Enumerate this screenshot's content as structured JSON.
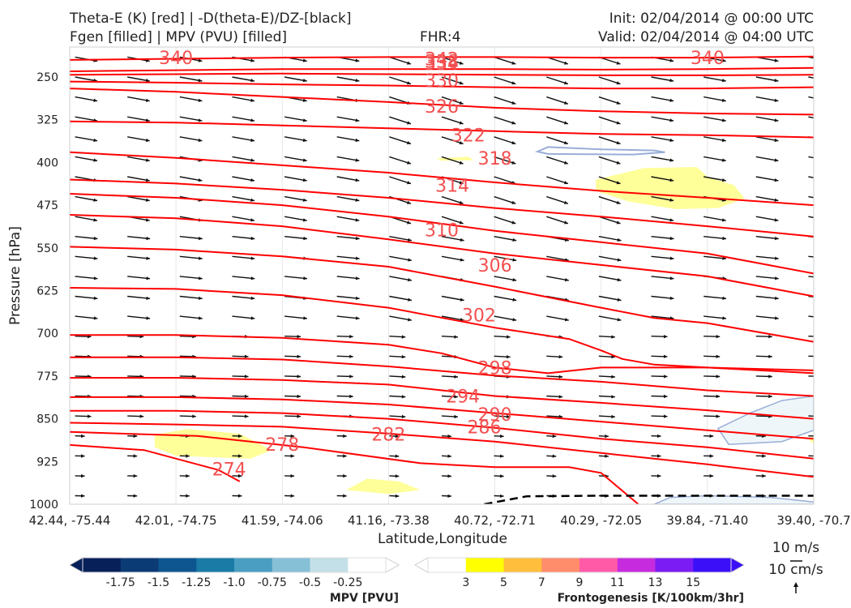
{
  "header": {
    "title_line1": "Theta-E (K) [red] | -D(theta-E)/DZ-[black]",
    "title_line2": "Fgen [filled] | MPV (PVU) [filled]",
    "fhr": "FHR:4",
    "init": "Init: 02/04/2014 @ 00:00 UTC",
    "valid": "Valid: 02/04/2014 @ 04:00 UTC"
  },
  "chart_data": {
    "type": "cross-section",
    "xlabel": "Latitude,Longitude",
    "ylabel": "Pressure [hPa]",
    "x_ticks": [
      "42.44, -75.44",
      "42.01, -74.75",
      "41.59, -74.06",
      "41.16, -73.38",
      "40.72, -72.71",
      "40.29, -72.05",
      "39.84, -71.40",
      "39.40, -70.7"
    ],
    "y_ticks": [
      "250",
      "325",
      "400",
      "475",
      "550",
      "625",
      "700",
      "775",
      "850",
      "925",
      "1000"
    ],
    "ylim": [
      1000,
      205
    ],
    "x_index_range": [
      0,
      7
    ],
    "theta_e_contours": [
      {
        "label": "274",
        "points": [
          [
            0,
            896
          ],
          [
            0.7,
            905
          ],
          [
            1.4,
            940
          ],
          [
            1.6,
            960
          ]
        ]
      },
      {
        "label": "278",
        "points": [
          [
            0,
            873
          ],
          [
            1.2,
            880
          ],
          [
            2.2,
            900
          ],
          [
            3.3,
            928
          ],
          [
            4.0,
            935
          ],
          [
            4.7,
            935
          ],
          [
            5.0,
            945
          ],
          [
            5.35,
            1000
          ]
        ]
      },
      {
        "label": "282",
        "points": [
          [
            0,
            857
          ],
          [
            1.0,
            860
          ],
          [
            2.0,
            864
          ],
          [
            3.0,
            876
          ],
          [
            4.0,
            890
          ],
          [
            5.0,
            910
          ],
          [
            6.0,
            930
          ],
          [
            7.0,
            952
          ]
        ]
      },
      {
        "label": "286",
        "points": [
          [
            0,
            836
          ],
          [
            1.0,
            836
          ],
          [
            2.0,
            840
          ],
          [
            3.0,
            850
          ],
          [
            4.0,
            866
          ],
          [
            5.0,
            885
          ],
          [
            6.0,
            900
          ],
          [
            7.0,
            920
          ]
        ]
      },
      {
        "label": "290",
        "points": [
          [
            0,
            812
          ],
          [
            1.0,
            812
          ],
          [
            2.0,
            816
          ],
          [
            3.0,
            825
          ],
          [
            4.0,
            840
          ],
          [
            5.0,
            855
          ],
          [
            6.0,
            870
          ],
          [
            7.0,
            885
          ]
        ]
      },
      {
        "label": "294",
        "points": [
          [
            0,
            778
          ],
          [
            1.0,
            778
          ],
          [
            2.0,
            782
          ],
          [
            3.0,
            790
          ],
          [
            4.0,
            810
          ],
          [
            5.0,
            822
          ],
          [
            6.0,
            835
          ],
          [
            7.0,
            850
          ]
        ]
      },
      {
        "label": "298",
        "points": [
          [
            0,
            742
          ],
          [
            1.0,
            742
          ],
          [
            2.0,
            746
          ],
          [
            3.0,
            758
          ],
          [
            4.0,
            774
          ],
          [
            5.0,
            785
          ],
          [
            6.0,
            800
          ],
          [
            7.0,
            810
          ]
        ]
      },
      {
        "label": "302",
        "points": [
          [
            0,
            703
          ],
          [
            1.0,
            703
          ],
          [
            2.0,
            708
          ],
          [
            3.0,
            720
          ],
          [
            3.5,
            735
          ],
          [
            4.0,
            760
          ],
          [
            4.5,
            770
          ],
          [
            5.0,
            760
          ],
          [
            6.0,
            760
          ],
          [
            7.0,
            765
          ]
        ]
      },
      {
        "label": "306",
        "points": [
          [
            0,
            620
          ],
          [
            1.0,
            622
          ],
          [
            2.0,
            633
          ],
          [
            3.0,
            655
          ],
          [
            4.0,
            690
          ],
          [
            4.7,
            710
          ],
          [
            5.0,
            730
          ],
          [
            5.2,
            745
          ],
          [
            5.5,
            755
          ],
          [
            6.0,
            760
          ],
          [
            7.0,
            770
          ]
        ]
      },
      {
        "label": "310",
        "points": [
          [
            0,
            548
          ],
          [
            1.0,
            553
          ],
          [
            2.0,
            565
          ],
          [
            3.0,
            583
          ],
          [
            4.0,
            618
          ],
          [
            5.0,
            655
          ],
          [
            5.5,
            673
          ],
          [
            6.0,
            682
          ],
          [
            7.0,
            715
          ]
        ]
      },
      {
        "label": "314",
        "points": [
          [
            0,
            492
          ],
          [
            1.0,
            498
          ],
          [
            2.0,
            512
          ],
          [
            3.0,
            535
          ],
          [
            4.0,
            560
          ],
          [
            5.0,
            580
          ],
          [
            6.0,
            600
          ],
          [
            7.0,
            635
          ]
        ]
      },
      {
        "label": "318",
        "points": [
          [
            0,
            455
          ],
          [
            1.0,
            462
          ],
          [
            2.0,
            475
          ],
          [
            3.0,
            495
          ],
          [
            4.0,
            520
          ],
          [
            5.0,
            540
          ],
          [
            6.0,
            560
          ],
          [
            7.0,
            595
          ]
        ]
      },
      {
        "label": "322",
        "points": [
          [
            0,
            430
          ],
          [
            1.0,
            437
          ],
          [
            2.0,
            448
          ],
          [
            3.0,
            462
          ],
          [
            4.0,
            480
          ],
          [
            5.0,
            495
          ],
          [
            6.0,
            512
          ],
          [
            7.0,
            530
          ]
        ]
      },
      {
        "label": "326",
        "points": [
          [
            0,
            382
          ],
          [
            1.0,
            392
          ],
          [
            2.0,
            405
          ],
          [
            3.0,
            418
          ],
          [
            4.0,
            435
          ],
          [
            5.0,
            450
          ],
          [
            6.0,
            462
          ],
          [
            7.0,
            475
          ]
        ]
      },
      {
        "label": "330",
        "points": [
          [
            0,
            328
          ],
          [
            1.0,
            330
          ],
          [
            2.0,
            335
          ],
          [
            3.0,
            340
          ],
          [
            4.0,
            345
          ],
          [
            5.0,
            350
          ],
          [
            6.0,
            352
          ],
          [
            7.0,
            356
          ]
        ]
      },
      {
        "label": "334",
        "points": [
          [
            0,
            270
          ],
          [
            1.0,
            276
          ],
          [
            2.0,
            285
          ],
          [
            3.0,
            294
          ],
          [
            4.0,
            304
          ],
          [
            5.0,
            310
          ],
          [
            6.0,
            314
          ],
          [
            7.0,
            316
          ]
        ]
      },
      {
        "label": "338",
        "points": [
          [
            0,
            258
          ],
          [
            1.0,
            260
          ],
          [
            2.0,
            263
          ],
          [
            3.0,
            265
          ],
          [
            4.0,
            268
          ],
          [
            5.0,
            270
          ],
          [
            6.0,
            270
          ],
          [
            7.0,
            268
          ]
        ]
      },
      {
        "label": "342",
        "points": [
          [
            0,
            246
          ],
          [
            1.0,
            245
          ],
          [
            2.0,
            244
          ],
          [
            3.0,
            245
          ],
          [
            4.0,
            246
          ],
          [
            5.0,
            247
          ],
          [
            6.0,
            247
          ],
          [
            7.0,
            246
          ]
        ]
      },
      {
        "label": "346",
        "points": [
          [
            0,
            240
          ],
          [
            1.0,
            238
          ],
          [
            2.0,
            236
          ],
          [
            3.0,
            236
          ],
          [
            4.0,
            236
          ],
          [
            5.0,
            237
          ],
          [
            6.0,
            236
          ],
          [
            7.0,
            234
          ]
        ]
      },
      {
        "label": "340",
        "points": [
          [
            0,
            220
          ],
          [
            1.0,
            218
          ],
          [
            2.0,
            216
          ],
          [
            3.0,
            215
          ],
          [
            4.0,
            215
          ],
          [
            5.0,
            216
          ],
          [
            6.0,
            216
          ],
          [
            7.0,
            214
          ]
        ]
      }
    ],
    "theta_e_contour_labels": [
      {
        "label": "340",
        "at": [
          1.0,
          216
        ]
      },
      {
        "label": "340",
        "at": [
          6.0,
          216
        ]
      },
      {
        "label": "342",
        "at": [
          3.5,
          218
        ]
      },
      {
        "label": "338",
        "at": [
          3.5,
          222
        ]
      },
      {
        "label": "334",
        "at": [
          3.5,
          226
        ]
      },
      {
        "label": "330",
        "at": [
          3.5,
          256
        ]
      },
      {
        "label": "326",
        "at": [
          3.5,
          301
        ]
      },
      {
        "label": "322",
        "at": [
          3.75,
          352
        ]
      },
      {
        "label": "318",
        "at": [
          4.0,
          392
        ]
      },
      {
        "label": "314",
        "at": [
          3.6,
          440
        ]
      },
      {
        "label": "310",
        "at": [
          3.5,
          518
        ]
      },
      {
        "label": "306",
        "at": [
          4.0,
          580
        ]
      },
      {
        "label": "302",
        "at": [
          3.85,
          668
        ]
      },
      {
        "label": "298",
        "at": [
          4.0,
          760
        ]
      },
      {
        "label": "294",
        "at": [
          3.7,
          810
        ]
      },
      {
        "label": "290",
        "at": [
          4.0,
          842
        ]
      },
      {
        "label": "286",
        "at": [
          3.9,
          864
        ]
      },
      {
        "label": "282",
        "at": [
          3.0,
          877
        ]
      },
      {
        "label": "278",
        "at": [
          2.0,
          895
        ]
      },
      {
        "label": "274",
        "at": [
          1.5,
          938
        ]
      }
    ],
    "fgen_filled_regions": [
      {
        "level": "3",
        "points": [
          [
            0.8,
            878
          ],
          [
            1.1,
            868
          ],
          [
            1.6,
            876
          ],
          [
            1.9,
            905
          ],
          [
            1.7,
            920
          ],
          [
            1.0,
            915
          ],
          [
            0.8,
            900
          ]
        ]
      },
      {
        "level": "3",
        "points": [
          [
            2.6,
            975
          ],
          [
            2.8,
            955
          ],
          [
            3.1,
            960
          ],
          [
            3.3,
            975
          ],
          [
            3.0,
            982
          ]
        ]
      },
      {
        "level": "3",
        "points": [
          [
            3.45,
            393
          ],
          [
            3.75,
            390
          ],
          [
            3.8,
            396
          ],
          [
            3.5,
            397
          ]
        ]
      },
      {
        "level": "3",
        "points": [
          [
            4.95,
            430
          ],
          [
            5.4,
            410
          ],
          [
            5.9,
            408
          ],
          [
            6.0,
            425
          ],
          [
            6.25,
            440
          ],
          [
            6.35,
            463
          ],
          [
            6.1,
            480
          ],
          [
            5.7,
            482
          ],
          [
            5.25,
            468
          ],
          [
            4.95,
            450
          ]
        ]
      },
      {
        "level": "3",
        "points": [
          [
            6.95,
            885
          ],
          [
            7.0,
            880
          ],
          [
            7.0,
            895
          ]
        ]
      }
    ],
    "mpv_filled_regions": [
      {
        "level": "-0.25",
        "points": [
          [
            6.1,
            867
          ],
          [
            6.4,
            840
          ],
          [
            6.7,
            818
          ],
          [
            7.0,
            810
          ],
          [
            7.0,
            870
          ],
          [
            6.7,
            890
          ],
          [
            6.2,
            895
          ]
        ]
      },
      {
        "level": "-0.25",
        "points": [
          [
            5.5,
            1000
          ],
          [
            5.65,
            988
          ],
          [
            6.0,
            985
          ],
          [
            6.6,
            988
          ],
          [
            7.0,
            996
          ],
          [
            7.0,
            1000
          ]
        ]
      }
    ],
    "mpv_contour": {
      "level": "-0.25",
      "points": [
        [
          4.4,
          381
        ],
        [
          4.5,
          373
        ],
        [
          5.0,
          377
        ],
        [
          5.5,
          379
        ],
        [
          5.6,
          382
        ],
        [
          5.3,
          386
        ],
        [
          4.5,
          385
        ]
      ]
    },
    "dashed_contour": {
      "points": [
        [
          3.9,
          1000
        ],
        [
          4.3,
          986
        ],
        [
          5.0,
          985
        ],
        [
          6.0,
          985
        ],
        [
          7.0,
          985
        ]
      ]
    },
    "colorbar_mpv": {
      "label": "MPV [PVU]",
      "levels": [
        "-1.75",
        "-1.5",
        "-1.25",
        "-1.0",
        "-0.75",
        "-0.5",
        "-0.25"
      ],
      "colors": [
        "#08205a",
        "#0b3b74",
        "#0d5690",
        "#1a7ba6",
        "#4a9ec1",
        "#86c0d6",
        "#c3dfe8",
        "#ffffff"
      ]
    },
    "colorbar_fgen": {
      "label": "Frontogenesis [K/100km/3hr]",
      "levels": [
        "3",
        "5",
        "7",
        "9",
        "11",
        "13",
        "15"
      ],
      "colors": [
        "#ffffff",
        "#ffff00",
        "#ffbf3c",
        "#ff8c6a",
        "#ff5aa8",
        "#c62cde",
        "#7a1cf3",
        "#3b10f8"
      ]
    },
    "wind_key": {
      "label_1": "10 m/s",
      "label_2": "10 cm/s"
    },
    "colors": {
      "theta_e": "#ff0000",
      "theta_e_label": "#f25050",
      "arrows": "#111111",
      "fgen_fill": "#ffff99",
      "mpv_fill": "#eef6f9",
      "mpv_line": "#9aadd8"
    }
  }
}
